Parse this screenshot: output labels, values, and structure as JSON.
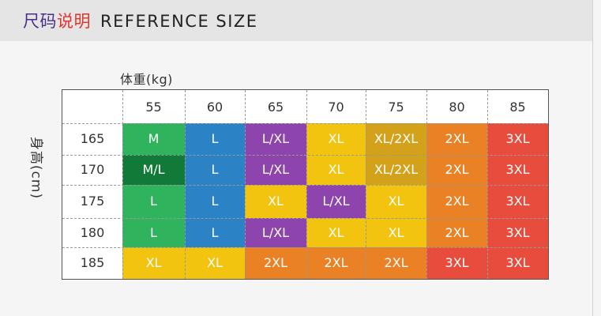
{
  "header": {
    "title_cn_1": "尺码",
    "title_cn_2": "说明",
    "title_en": "REFERENCE SIZE"
  },
  "weight_label": "体重(kg)",
  "height_label": "身高(cm)",
  "weights": [
    "55",
    "60",
    "65",
    "70",
    "75",
    "80",
    "85"
  ],
  "heights": [
    "165",
    "170",
    "175",
    "180",
    "185"
  ],
  "colors": {
    "green": "#2fb35c",
    "darkgreen": "#127a38",
    "blue": "#2b83c6",
    "purple": "#8e44ad",
    "yellow": "#f2c40f",
    "gold": "#d4a21a",
    "orange": "#ea8125",
    "red": "#e74c3c"
  },
  "grid": [
    [
      {
        "t": "M",
        "c": "green"
      },
      {
        "t": "L",
        "c": "blue"
      },
      {
        "t": "L/XL",
        "c": "purple"
      },
      {
        "t": "XL",
        "c": "yellow"
      },
      {
        "t": "XL/2XL",
        "c": "gold"
      },
      {
        "t": "2XL",
        "c": "orange"
      },
      {
        "t": "3XL",
        "c": "red"
      }
    ],
    [
      {
        "t": "M/L",
        "c": "darkgreen"
      },
      {
        "t": "L",
        "c": "blue"
      },
      {
        "t": "L/XL",
        "c": "purple"
      },
      {
        "t": "XL",
        "c": "yellow"
      },
      {
        "t": "XL/2XL",
        "c": "gold"
      },
      {
        "t": "2XL",
        "c": "orange"
      },
      {
        "t": "3XL",
        "c": "red"
      }
    ],
    [
      {
        "t": "L",
        "c": "green"
      },
      {
        "t": "L",
        "c": "blue"
      },
      {
        "t": "XL",
        "c": "yellow"
      },
      {
        "t": "L/XL",
        "c": "purple"
      },
      {
        "t": "XL",
        "c": "yellow"
      },
      {
        "t": "2XL",
        "c": "orange"
      },
      {
        "t": "3XL",
        "c": "red"
      }
    ],
    [
      {
        "t": "L",
        "c": "green"
      },
      {
        "t": "L",
        "c": "blue"
      },
      {
        "t": "L/XL",
        "c": "purple"
      },
      {
        "t": "XL",
        "c": "yellow"
      },
      {
        "t": "XL",
        "c": "yellow"
      },
      {
        "t": "2XL",
        "c": "orange"
      },
      {
        "t": "3XL",
        "c": "red"
      }
    ],
    [
      {
        "t": "XL",
        "c": "yellow"
      },
      {
        "t": "XL",
        "c": "yellow"
      },
      {
        "t": "2XL",
        "c": "orange"
      },
      {
        "t": "2XL",
        "c": "orange"
      },
      {
        "t": "2XL",
        "c": "orange"
      },
      {
        "t": "3XL",
        "c": "red"
      },
      {
        "t": "3XL",
        "c": "red"
      }
    ]
  ]
}
